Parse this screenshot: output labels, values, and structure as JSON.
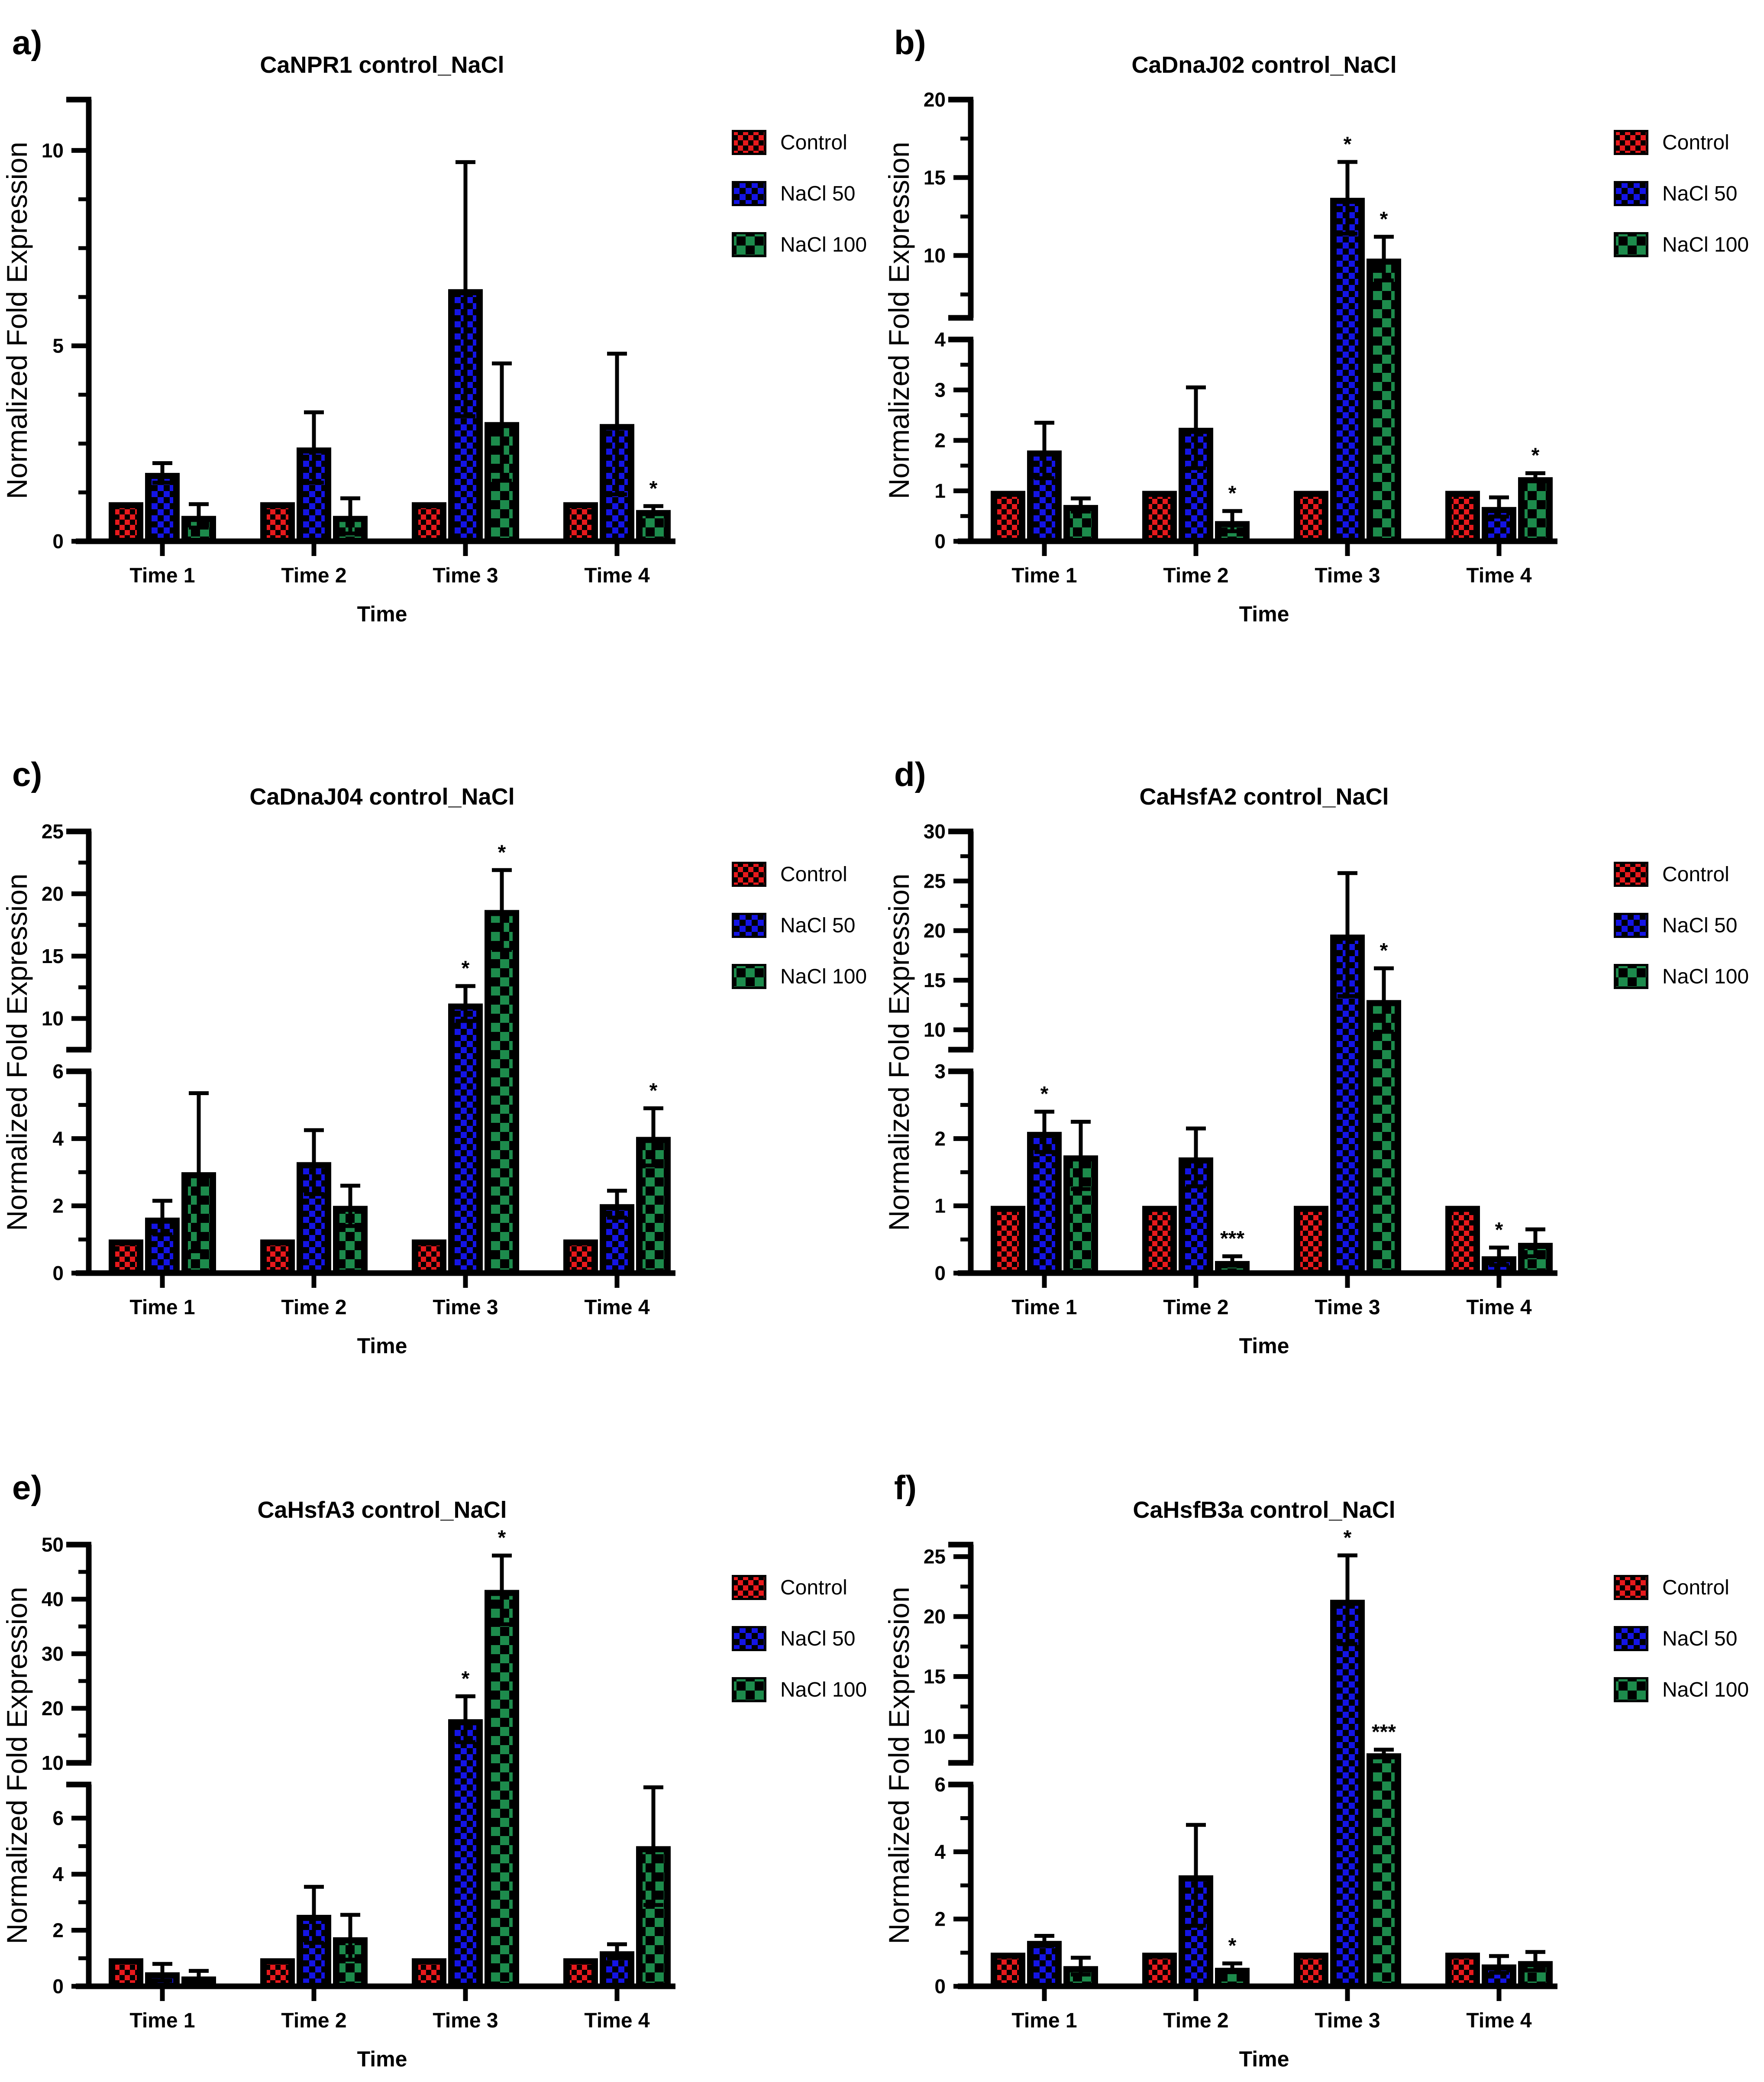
{
  "page": {
    "background": "#ffffff"
  },
  "shared": {
    "ylabel": "Normalized Fold Expression",
    "xlabel": "Time",
    "categories": [
      "Time 1",
      "Time 2",
      "Time 3",
      "Time 4"
    ],
    "series_legend": [
      "Control",
      "NaCl 50",
      "NaCl 100"
    ],
    "series_colors": {
      "Control": "#e8191c",
      "NaCl 50": "#1414e6",
      "NaCl 100": "#1d8b4c"
    },
    "bar_outline": "#000000",
    "legend_position": "right-top"
  },
  "chart_data": [
    {
      "panel_label": "a)",
      "title": "CaNPR1 control_NaCl",
      "type": "bar",
      "xlabel": "Time",
      "ylabel": "Normalized Fold Expression",
      "categories": [
        "Time 1",
        "Time 2",
        "Time 3",
        "Time 4"
      ],
      "ylim_segments": [
        {
          "min": 0,
          "max": 11.3,
          "major_ticks": [
            0,
            5,
            10
          ],
          "minor_step": 1.25
        }
      ],
      "series": [
        {
          "name": "Control",
          "values": [
            1,
            1,
            1,
            1
          ],
          "errors": [
            0,
            0,
            0,
            0
          ],
          "sig": [
            "",
            "",
            "",
            ""
          ]
        },
        {
          "name": "NaCl 50",
          "values": [
            1.75,
            2.4,
            6.45,
            3.0
          ],
          "errors": [
            0.25,
            0.9,
            3.25,
            1.8
          ],
          "sig": [
            "",
            "",
            "",
            ""
          ]
        },
        {
          "name": "NaCl 100",
          "values": [
            0.65,
            0.65,
            3.05,
            0.8
          ],
          "errors": [
            0.3,
            0.45,
            1.5,
            0.1
          ],
          "sig": [
            "",
            "",
            "",
            "*"
          ]
        }
      ]
    },
    {
      "panel_label": "b)",
      "title": "CaDnaJ02 control_NaCl",
      "type": "bar",
      "xlabel": "Time",
      "ylabel": "Normalized Fold Expression",
      "categories": [
        "Time 1",
        "Time 2",
        "Time 3",
        "Time 4"
      ],
      "ylim_segments": [
        {
          "min": 0,
          "max": 4,
          "major_ticks": [
            0,
            1,
            2,
            3,
            4
          ],
          "minor_step": 0.5
        },
        {
          "min": 6,
          "max": 20,
          "major_ticks": [
            10,
            15,
            20
          ],
          "minor_step": 2.5
        }
      ],
      "series": [
        {
          "name": "Control",
          "values": [
            1,
            1,
            1,
            1
          ],
          "errors": [
            0,
            0,
            0,
            0
          ],
          "sig": [
            "",
            "",
            "",
            ""
          ]
        },
        {
          "name": "NaCl 50",
          "values": [
            1.8,
            2.25,
            13.7,
            0.68
          ],
          "errors": [
            0.55,
            0.8,
            2.3,
            0.19
          ],
          "sig": [
            "",
            "",
            "*",
            ""
          ]
        },
        {
          "name": "NaCl 100",
          "values": [
            0.72,
            0.4,
            9.8,
            1.27
          ],
          "errors": [
            0.13,
            0.2,
            1.4,
            0.08
          ],
          "sig": [
            "",
            "*",
            "*",
            "*"
          ]
        }
      ]
    },
    {
      "panel_label": "c)",
      "title": "CaDnaJ04 control_NaCl",
      "type": "bar",
      "xlabel": "Time",
      "ylabel": "Normalized Fold Expression",
      "categories": [
        "Time 1",
        "Time 2",
        "Time 3",
        "Time 4"
      ],
      "ylim_segments": [
        {
          "min": 0,
          "max": 6,
          "major_ticks": [
            0,
            2,
            4,
            6
          ],
          "minor_step": 1
        },
        {
          "min": 7.5,
          "max": 25,
          "major_ticks": [
            10,
            15,
            20,
            25
          ],
          "minor_step": 2.5
        }
      ],
      "series": [
        {
          "name": "Control",
          "values": [
            1,
            1,
            1,
            1
          ],
          "errors": [
            0,
            0,
            0,
            0
          ],
          "sig": [
            "",
            "",
            "",
            ""
          ]
        },
        {
          "name": "NaCl 50",
          "values": [
            1.65,
            3.3,
            11.2,
            2.05
          ],
          "errors": [
            0.5,
            0.95,
            1.4,
            0.4
          ],
          "sig": [
            "",
            "",
            "*",
            ""
          ]
        },
        {
          "name": "NaCl 100",
          "values": [
            3.0,
            2.0,
            18.7,
            4.05
          ],
          "errors": [
            2.35,
            0.6,
            3.2,
            0.85
          ],
          "sig": [
            "",
            "",
            "*",
            "*"
          ]
        }
      ]
    },
    {
      "panel_label": "d)",
      "title": "CaHsfA2 control_NaCl",
      "type": "bar",
      "xlabel": "Time",
      "ylabel": "Normalized Fold Expression",
      "categories": [
        "Time 1",
        "Time 2",
        "Time 3",
        "Time 4"
      ],
      "ylim_segments": [
        {
          "min": 0,
          "max": 3,
          "major_ticks": [
            0,
            1,
            2,
            3
          ],
          "minor_step": 0.5
        },
        {
          "min": 8,
          "max": 30,
          "major_ticks": [
            10,
            15,
            20,
            25,
            30
          ],
          "minor_step": 2.5
        }
      ],
      "series": [
        {
          "name": "Control",
          "values": [
            1,
            1,
            1,
            1
          ],
          "errors": [
            0,
            0,
            0,
            0
          ],
          "sig": [
            "",
            "",
            "",
            ""
          ]
        },
        {
          "name": "NaCl 50",
          "values": [
            2.1,
            1.72,
            19.6,
            0.25
          ],
          "errors": [
            0.3,
            0.43,
            6.2,
            0.13
          ],
          "sig": [
            "*",
            "",
            "",
            "*"
          ]
        },
        {
          "name": "NaCl 100",
          "values": [
            1.75,
            0.18,
            13.0,
            0.45
          ],
          "errors": [
            0.5,
            0.07,
            3.2,
            0.2
          ],
          "sig": [
            "",
            "***",
            "*",
            ""
          ]
        }
      ]
    },
    {
      "panel_label": "e)",
      "title": "CaHsfA3 control_NaCl",
      "type": "bar",
      "xlabel": "Time",
      "ylabel": "Normalized Fold Expression",
      "categories": [
        "Time 1",
        "Time 2",
        "Time 3",
        "Time 4"
      ],
      "ylim_segments": [
        {
          "min": 0,
          "max": 7.2,
          "major_ticks": [
            0,
            2,
            4,
            6
          ],
          "minor_step": 1
        },
        {
          "min": 10,
          "max": 50,
          "major_ticks": [
            10,
            20,
            30,
            40,
            50
          ],
          "minor_step": 5
        }
      ],
      "series": [
        {
          "name": "Control",
          "values": [
            1,
            1,
            1,
            1
          ],
          "errors": [
            0,
            0,
            0,
            0
          ],
          "sig": [
            "",
            "",
            "",
            ""
          ]
        },
        {
          "name": "NaCl 50",
          "values": [
            0.5,
            2.55,
            18.0,
            1.25
          ],
          "errors": [
            0.3,
            1.0,
            4.2,
            0.25
          ],
          "sig": [
            "",
            "",
            "*",
            ""
          ]
        },
        {
          "name": "NaCl 100",
          "values": [
            0.35,
            1.75,
            41.7,
            5.0
          ],
          "errors": [
            0.2,
            0.8,
            6.3,
            2.1
          ],
          "sig": [
            "",
            "",
            "*",
            ""
          ]
        }
      ]
    },
    {
      "panel_label": "f)",
      "title": "CaHsfB3a control_NaCl",
      "type": "bar",
      "xlabel": "Time",
      "ylabel": "Normalized Fold Expression",
      "categories": [
        "Time 1",
        "Time 2",
        "Time 3",
        "Time 4"
      ],
      "ylim_segments": [
        {
          "min": 0,
          "max": 6,
          "major_ticks": [
            0,
            2,
            4,
            6
          ],
          "minor_step": 1
        },
        {
          "min": 7.8,
          "max": 26,
          "major_ticks": [
            10,
            15,
            20,
            25
          ],
          "minor_step": 2.5
        }
      ],
      "series": [
        {
          "name": "Control",
          "values": [
            1,
            1,
            1,
            1
          ],
          "errors": [
            0,
            0,
            0,
            0
          ],
          "sig": [
            "",
            "",
            "",
            ""
          ]
        },
        {
          "name": "NaCl 50",
          "values": [
            1.35,
            3.3,
            21.4,
            0.65
          ],
          "errors": [
            0.15,
            1.5,
            3.7,
            0.25
          ],
          "sig": [
            "",
            "",
            "*",
            ""
          ]
        },
        {
          "name": "NaCl 100",
          "values": [
            0.6,
            0.55,
            8.6,
            0.75
          ],
          "errors": [
            0.25,
            0.13,
            0.3,
            0.27
          ],
          "sig": [
            "",
            "*",
            "***",
            ""
          ]
        }
      ]
    }
  ]
}
